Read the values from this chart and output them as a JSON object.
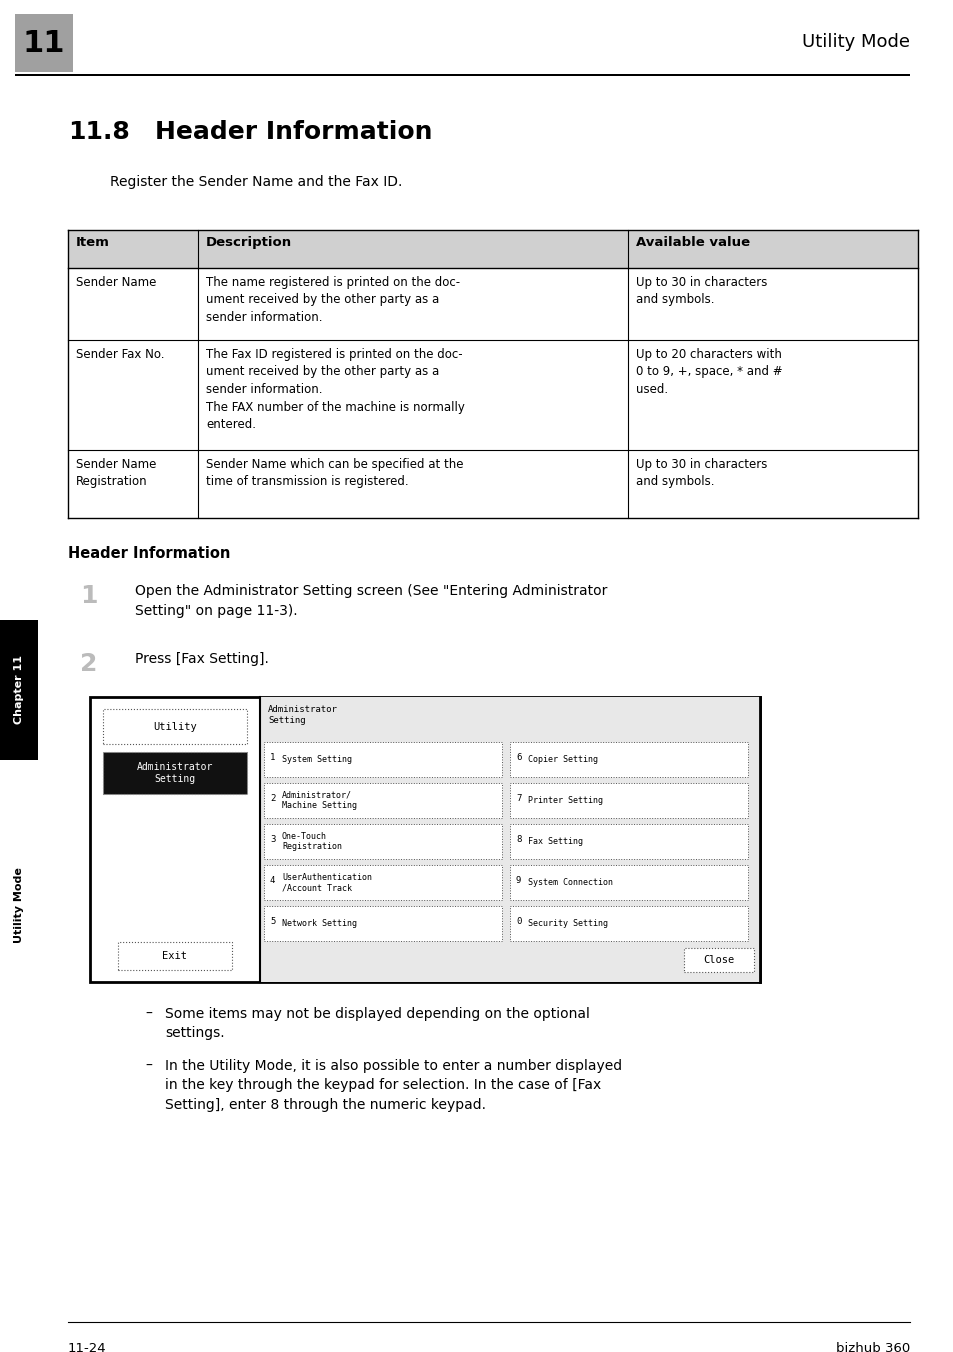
{
  "page_width": 9.54,
  "page_height": 13.52,
  "bg_color": "#ffffff",
  "header_number": "11",
  "header_title": "Utility Mode",
  "section_number": "11.8",
  "section_title": "Header Information",
  "intro_text": "Register the Sender Name and the Fax ID.",
  "table_headers": [
    "Item",
    "Description",
    "Available value"
  ],
  "table_rows": [
    [
      "Sender Name",
      "The name registered is printed on the doc-\nument received by the other party as a\nsender information.",
      "Up to 30 in characters\nand symbols."
    ],
    [
      "Sender Fax No.",
      "The Fax ID registered is printed on the doc-\nument received by the other party as a\nsender information.\nThe FAX number of the machine is normally\nentered.",
      "Up to 20 characters with\n0 to 9, +, space, * and #\nused."
    ],
    [
      "Sender Name\nRegistration",
      "Sender Name which can be specified at the\ntime of transmission is registered.",
      "Up to 30 in characters\nand symbols."
    ]
  ],
  "subsection_title": "Header Information",
  "step1_num": "1",
  "step1_text": "Open the Administrator Setting screen (See \"Entering Administrator\nSetting\" on page 11-3).",
  "step2_num": "2",
  "step2_text": "Press [Fax Setting].",
  "bullet1": "Some items may not be displayed depending on the optional\nsettings.",
  "bullet2": "In the Utility Mode, it is also possible to enter a number displayed\nin the key through the keypad for selection. In the case of [Fax\nSetting], enter 8 through the numeric keypad.",
  "sidebar_text1": "Chapter 11",
  "sidebar_text2": "Utility Mode",
  "footer_left": "11-24",
  "footer_right": "bizhub 360",
  "header_bg": "#a0a0a0",
  "table_header_bg": "#d0d0d0",
  "sidebar_bg1": "#000000",
  "sidebar_bg2": "#ffffff"
}
